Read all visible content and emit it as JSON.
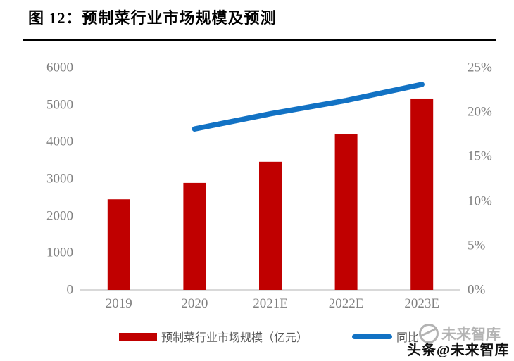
{
  "title": "图 12：预制菜行业市场规模及预测",
  "watermark": {
    "gray_text": "未来智库",
    "black_text": "头条@未来智库"
  },
  "colors": {
    "bar": "#C00000",
    "line": "#1272C4",
    "axis_line": "#D9D9D9",
    "tick_text": "#808080",
    "legend_text": "#595959"
  },
  "chart_data": {
    "type": "bar",
    "subtype": "combo-bar-line",
    "categories": [
      "2019",
      "2020",
      "2021E",
      "2022E",
      "2023E"
    ],
    "series": [
      {
        "name": "预制菜行业市场规模（亿元）",
        "type": "bar",
        "axis": "left",
        "color": "#C00000",
        "values": [
          2445,
          2888,
          3459,
          4196,
          5165
        ]
      },
      {
        "name": "同比",
        "type": "line",
        "axis": "right",
        "color": "#1272C4",
        "start_index": 1,
        "values": [
          18.1,
          19.8,
          21.3,
          23.1
        ]
      }
    ],
    "left_axis": {
      "min": 0,
      "max": 6000,
      "ticks": [
        "0",
        "1000",
        "2000",
        "3000",
        "4000",
        "5000",
        "6000"
      ]
    },
    "right_axis": {
      "min": 0,
      "max": 25,
      "ticks": [
        "0%",
        "5%",
        "10%",
        "15%",
        "20%",
        "25%"
      ]
    },
    "grid": false,
    "legend_position": "bottom"
  }
}
